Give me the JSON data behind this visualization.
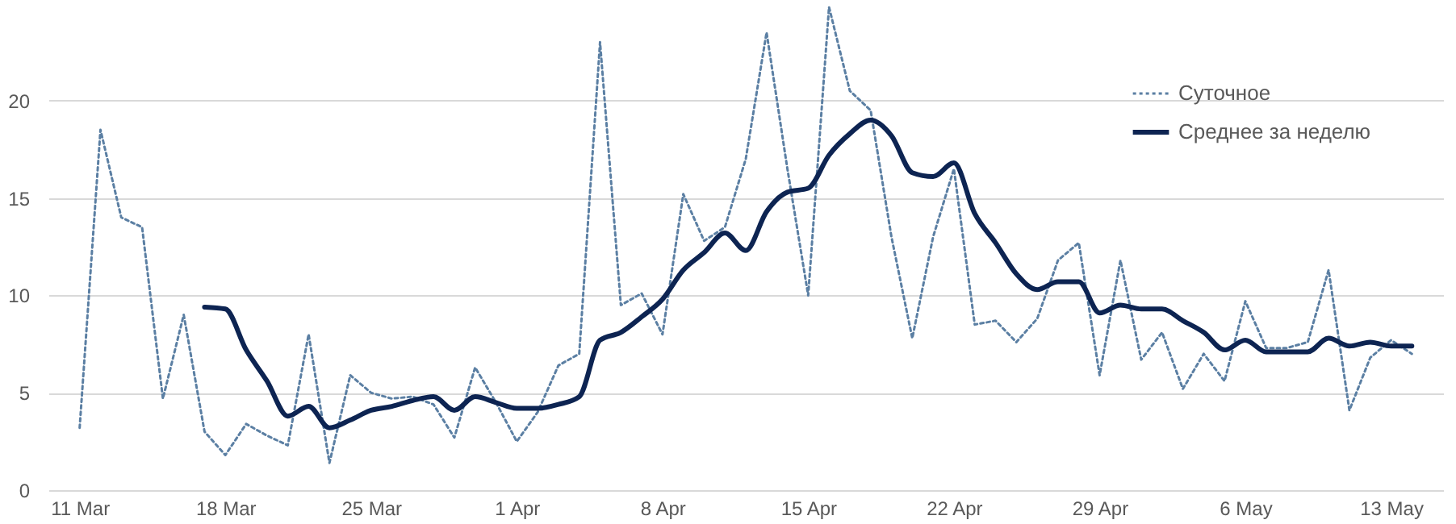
{
  "chart_data": {
    "type": "line",
    "x": [
      "--03-11",
      "--03-12",
      "--03-13",
      "--03-14",
      "--03-15",
      "--03-16",
      "--03-17",
      "--03-18",
      "--03-19",
      "--03-20",
      "--03-21",
      "--03-22",
      "--03-23",
      "--03-24",
      "--03-25",
      "--03-26",
      "--03-27",
      "--03-28",
      "--03-29",
      "--03-30",
      "--03-31",
      "--04-01",
      "--04-02",
      "--04-03",
      "--04-04",
      "--04-05",
      "--04-06",
      "--04-07",
      "--04-08",
      "--04-09",
      "--04-10",
      "--04-11",
      "--04-12",
      "--04-13",
      "--04-14",
      "--04-15",
      "--04-16",
      "--04-17",
      "--04-18",
      "--04-19",
      "--04-20",
      "--04-21",
      "--04-22",
      "--04-23",
      "--04-24",
      "--04-25",
      "--04-26",
      "--04-27",
      "--04-28",
      "--04-29",
      "--04-30",
      "--05-01",
      "--05-02",
      "--05-03",
      "--05-04",
      "--05-05",
      "--05-06",
      "--05-07",
      "--05-08",
      "--05-09",
      "--05-10",
      "--05-11",
      "--05-12",
      "--05-13",
      "--05-14"
    ],
    "series": [
      {
        "name": "Суточное",
        "color": "#5b7fa3",
        "line_style": "dotted",
        "values": [
          3.2,
          18.5,
          14,
          13.5,
          4.7,
          9,
          3,
          1.8,
          3.4,
          2.8,
          2.3,
          8,
          1.4,
          5.9,
          5,
          4.7,
          4.8,
          4.4,
          2.7,
          6.3,
          4.5,
          2.5,
          4,
          6.4,
          7,
          23,
          9.5,
          10.1,
          8,
          15.2,
          12.8,
          13.5,
          17,
          23.5,
          16.5,
          10,
          24.8,
          20.5,
          19.5,
          13,
          7.8,
          13,
          16.5,
          8.5,
          8.7,
          7.6,
          8.8,
          11.8,
          12.7,
          5.9,
          11.8,
          6.7,
          8.1,
          5.2,
          7,
          5.6,
          9.7,
          7.3,
          7.3,
          7.6,
          11.3,
          4.1,
          6.8,
          7.7,
          7
        ]
      },
      {
        "name": "Среднее за неделю",
        "color": "#0d2452",
        "line_style": "solid",
        "values": [
          null,
          null,
          null,
          null,
          null,
          null,
          9.4,
          9.3,
          7.2,
          5.6,
          3.8,
          4.3,
          3.2,
          3.6,
          4.1,
          4.3,
          4.6,
          4.8,
          4.1,
          4.8,
          4.5,
          4.2,
          4.2,
          4.4,
          4.8,
          7.7,
          8.1,
          8.9,
          9.8,
          11.3,
          12.2,
          13.2,
          12.3,
          14.3,
          15.3,
          15.5,
          17.2,
          18.3,
          19,
          18.2,
          16.3,
          16.1,
          16.8,
          14.2,
          12.7,
          11.1,
          10.3,
          10.7,
          10.7,
          9.1,
          9.5,
          9.3,
          9.3,
          8.7,
          8.1,
          7.2,
          7.7,
          7.1,
          7.1,
          7.1,
          7.8,
          7.4,
          7.6,
          7.4,
          7.4
        ]
      }
    ],
    "xlim": [
      "--03-09T12:00",
      "--05-15T12:00"
    ],
    "xticks": [
      {
        "value": "--03-11",
        "label": "11 Mar"
      },
      {
        "value": "--03-18",
        "label": "18 Mar"
      },
      {
        "value": "--03-25",
        "label": "25 Mar"
      },
      {
        "value": "--04-01",
        "label": "1 Apr"
      },
      {
        "value": "--04-08",
        "label": "8 Apr"
      },
      {
        "value": "--04-15",
        "label": "15 Apr"
      },
      {
        "value": "--04-22",
        "label": "22 Apr"
      },
      {
        "value": "--04-29",
        "label": "29 Apr"
      },
      {
        "value": "--05-06",
        "label": "6 May"
      },
      {
        "value": "--05-13",
        "label": "13 May"
      }
    ],
    "ylim": [
      0,
      25
    ],
    "yticks": [
      0,
      5,
      10,
      15,
      20
    ],
    "grid": "y",
    "legend": "top right"
  }
}
